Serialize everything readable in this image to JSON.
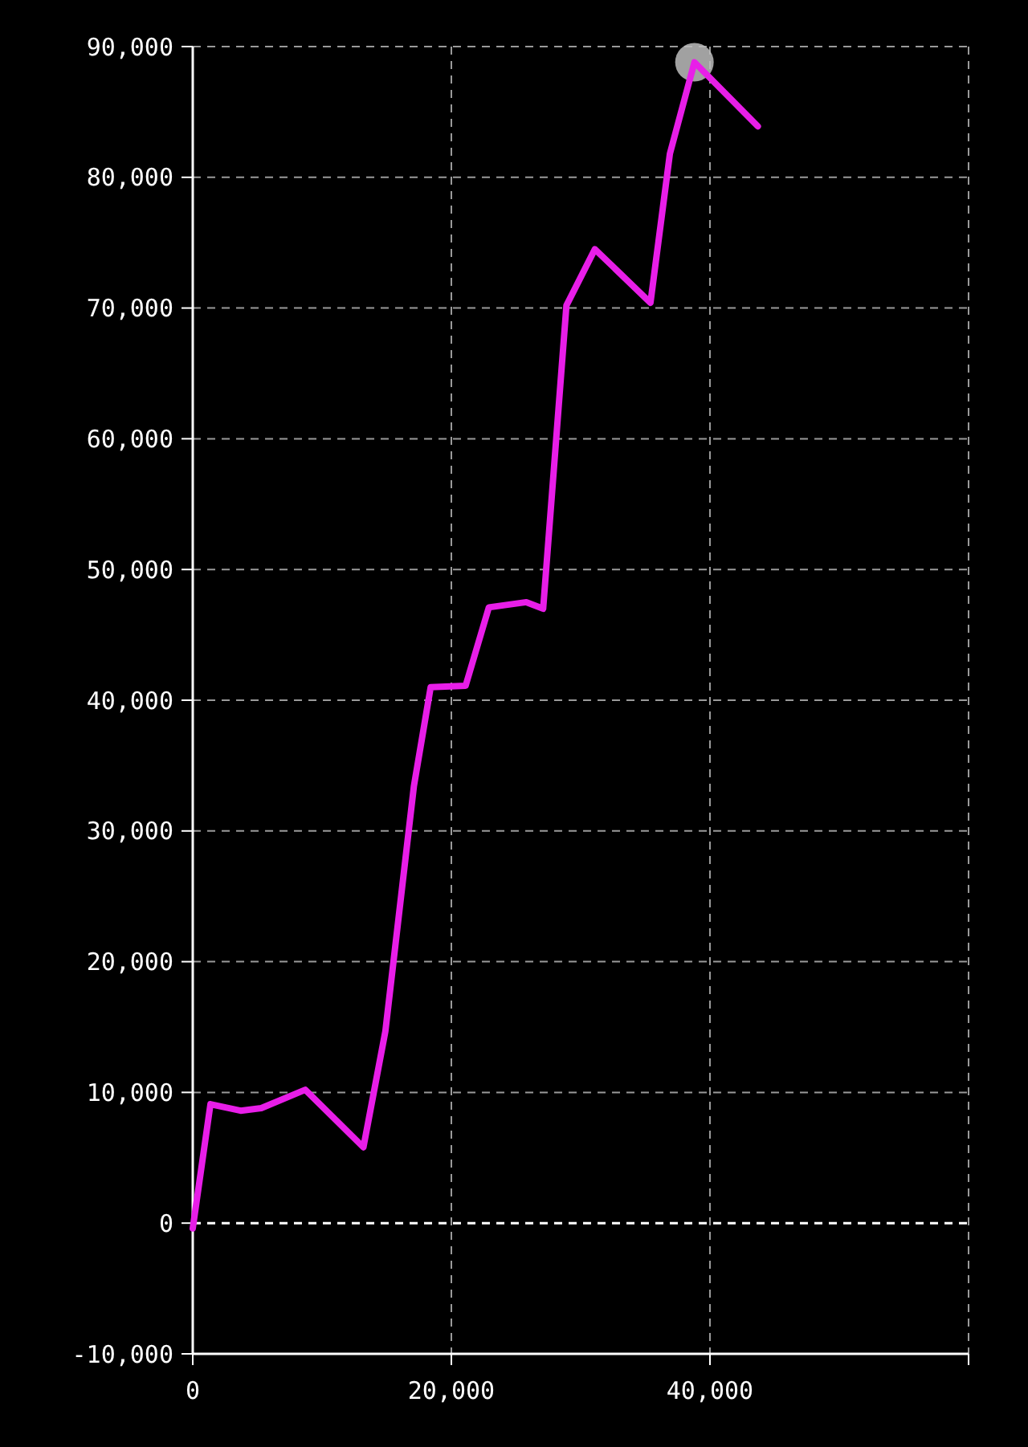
{
  "chart_data": {
    "type": "line",
    "xlim": [
      0,
      60000
    ],
    "ylim": [
      -10000,
      90000
    ],
    "xticks": [
      0,
      {
        "value": 20000,
        "label": "20,000"
      },
      {
        "value": 40000,
        "label": "40,000"
      },
      {
        "value": 60000,
        "label": null
      }
    ],
    "yticks": [
      {
        "value": -10000,
        "label": "-10,000"
      },
      0,
      {
        "value": 10000,
        "label": "10,000"
      },
      {
        "value": 20000,
        "label": "20,000"
      },
      {
        "value": 30000,
        "label": "30,000"
      },
      {
        "value": 40000,
        "label": "40,000"
      },
      {
        "value": 50000,
        "label": "50,000"
      },
      {
        "value": 60000,
        "label": "60,000"
      },
      {
        "value": 70000,
        "label": "70,000"
      },
      {
        "value": 80000,
        "label": "80,000"
      },
      {
        "value": 90000,
        "label": "90,000"
      }
    ],
    "grid": true,
    "line_style": "solid",
    "ref_lines": [
      {
        "axis": "y",
        "value": 0,
        "color": "#ffffff",
        "line_style": "dashed"
      }
    ],
    "series": [
      {
        "type": "line",
        "marker": "none",
        "color": "#e81ee8",
        "x": [
          0,
          1370,
          3700,
          5300,
          8700,
          13200,
          14900,
          17100,
          18400,
          21100,
          22900,
          25800,
          27100,
          28900,
          31100,
          35400,
          36900,
          38800,
          43700
        ],
        "values": [
          -400,
          9100,
          8600,
          8800,
          10200,
          5800,
          14700,
          33400,
          41000,
          41100,
          47100,
          47500,
          47000,
          70200,
          74500,
          70400,
          81800,
          88800,
          83900
        ]
      },
      {
        "type": "scatter",
        "marker": "circle",
        "color": "#bdbdbd",
        "x": [
          38800
        ],
        "values": [
          88800
        ]
      }
    ]
  }
}
